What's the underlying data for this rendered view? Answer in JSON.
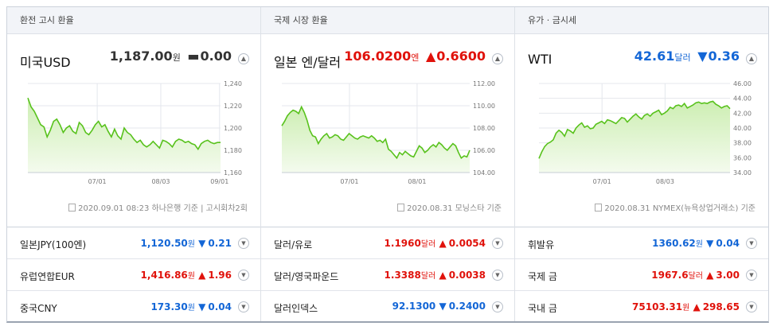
{
  "panels": [
    {
      "header": "환전 고시 환율",
      "main": {
        "title": "미국USD",
        "value": "1,187.00",
        "unit": "원",
        "symbol": "▬",
        "change": "0.00",
        "direction": "flat"
      },
      "source": "2020.09.01 08:23 하나은행 기준 | 고시회차2회",
      "rows": [
        {
          "name": "일본JPY(100엔)",
          "value": "1,120.50",
          "unit": "원",
          "symbol": "▼",
          "change": "0.21",
          "direction": "dn"
        },
        {
          "name": "유럽연합EUR",
          "value": "1,416.86",
          "unit": "원",
          "symbol": "▲",
          "change": "1.96",
          "direction": "up"
        },
        {
          "name": "중국CNY",
          "value": "173.30",
          "unit": "원",
          "symbol": "▼",
          "change": "0.04",
          "direction": "dn"
        }
      ]
    },
    {
      "header": "국제 시장 환율",
      "main": {
        "title": "일본 엔/달러",
        "value": "106.0200",
        "unit": "엔",
        "symbol": "▲",
        "change": "0.6600",
        "direction": "up"
      },
      "source": "2020.08.31 모닝스타 기준",
      "rows": [
        {
          "name": "달러/유로",
          "value": "1.1960",
          "unit": "달러",
          "symbol": "▲",
          "change": "0.0054",
          "direction": "up"
        },
        {
          "name": "달러/영국파운드",
          "value": "1.3388",
          "unit": "달러",
          "symbol": "▲",
          "change": "0.0038",
          "direction": "up"
        },
        {
          "name": "달러인덱스",
          "value": "92.1300",
          "unit": "",
          "symbol": "▼",
          "change": "0.2400",
          "direction": "dn"
        }
      ]
    },
    {
      "header": "유가 · 금시세",
      "main": {
        "title": "WTI",
        "value": "42.61",
        "unit": "달러",
        "symbol": "▼",
        "change": "0.36",
        "direction": "dn"
      },
      "source": "2020.08.31 NYMEX(뉴욕상업거래소) 기준",
      "rows": [
        {
          "name": "휘발유",
          "value": "1360.62",
          "unit": "원",
          "symbol": "▼",
          "change": "0.04",
          "direction": "dn"
        },
        {
          "name": "국제 금",
          "value": "1967.6",
          "unit": "달러",
          "symbol": "▲",
          "change": "3.00",
          "direction": "up"
        },
        {
          "name": "국내 금",
          "value": "75103.31",
          "unit": "원",
          "symbol": "▲",
          "change": "298.65",
          "direction": "up"
        }
      ]
    }
  ],
  "chart_data": [
    {
      "type": "area",
      "title": "미국USD",
      "x_ticks": [
        "07/01",
        "08/03",
        "09/01"
      ],
      "y_ticks": [
        "1,240",
        "1,220",
        "1,200",
        "1,180",
        "1,160"
      ],
      "ylim": [
        1160,
        1240
      ],
      "grid": true,
      "values": [
        1227,
        1219,
        1215,
        1209,
        1203,
        1201,
        1192,
        1198,
        1206,
        1208,
        1203,
        1196,
        1200,
        1202,
        1197,
        1195,
        1205,
        1202,
        1196,
        1194,
        1198,
        1203,
        1206,
        1201,
        1203,
        1197,
        1192,
        1199,
        1193,
        1190,
        1200,
        1196,
        1194,
        1190,
        1187,
        1189,
        1185,
        1183,
        1185,
        1188,
        1185,
        1182,
        1189,
        1188,
        1186,
        1183,
        1188,
        1190,
        1189,
        1187,
        1188,
        1186,
        1185,
        1181,
        1186,
        1188,
        1189,
        1187,
        1186,
        1187,
        1187
      ]
    },
    {
      "type": "area",
      "title": "일본 엔/달러",
      "x_ticks": [
        "07/01",
        "08/01"
      ],
      "y_ticks": [
        "112.00",
        "110.00",
        "108.00",
        "106.00",
        "104.00"
      ],
      "ylim": [
        104,
        112
      ],
      "grid": true,
      "values": [
        108.2,
        108.6,
        109.1,
        109.4,
        109.6,
        109.5,
        109.3,
        109.9,
        109.4,
        108.7,
        107.8,
        107.3,
        107.2,
        106.6,
        107.0,
        107.3,
        107.5,
        107.1,
        107.2,
        107.4,
        107.3,
        107.0,
        106.9,
        107.2,
        107.5,
        107.3,
        107.1,
        107.0,
        107.2,
        107.3,
        107.2,
        107.1,
        107.3,
        107.1,
        106.8,
        106.9,
        106.7,
        107.0,
        106.1,
        105.9,
        105.6,
        105.3,
        105.8,
        105.6,
        105.9,
        105.7,
        105.5,
        105.4,
        105.9,
        106.4,
        106.2,
        105.8,
        106.0,
        106.3,
        106.5,
        106.3,
        106.7,
        106.5,
        106.2,
        106.0,
        106.3,
        106.6,
        106.4,
        105.8,
        105.3,
        105.5,
        105.4,
        106.0
      ]
    },
    {
      "type": "area",
      "title": "WTI",
      "x_ticks": [
        "07/01",
        "08/03"
      ],
      "y_ticks": [
        "46.00",
        "44.00",
        "42.00",
        "40.00",
        "38.00",
        "36.00",
        "34.00"
      ],
      "ylim": [
        34,
        46
      ],
      "grid": true,
      "values": [
        35.9,
        36.8,
        37.5,
        37.9,
        38.1,
        38.4,
        39.3,
        39.7,
        39.4,
        38.9,
        39.8,
        39.6,
        39.3,
        40.0,
        40.4,
        40.7,
        40.1,
        40.3,
        39.9,
        40.0,
        40.5,
        40.7,
        40.9,
        40.6,
        41.1,
        41.0,
        40.8,
        40.6,
        41.0,
        41.4,
        41.3,
        40.8,
        41.2,
        41.6,
        41.9,
        41.5,
        41.2,
        41.7,
        41.9,
        41.6,
        42.0,
        42.2,
        42.4,
        41.8,
        42.0,
        42.3,
        42.8,
        42.6,
        43.0,
        43.1,
        42.9,
        43.3,
        42.7,
        42.9,
        43.1,
        43.4,
        43.5,
        43.3,
        43.4,
        43.3,
        43.5,
        43.6,
        43.2,
        43.0,
        42.7,
        42.9,
        43.0,
        42.6
      ]
    }
  ],
  "toggle_icon_up": "▲",
  "toggle_icon_down": "▼"
}
